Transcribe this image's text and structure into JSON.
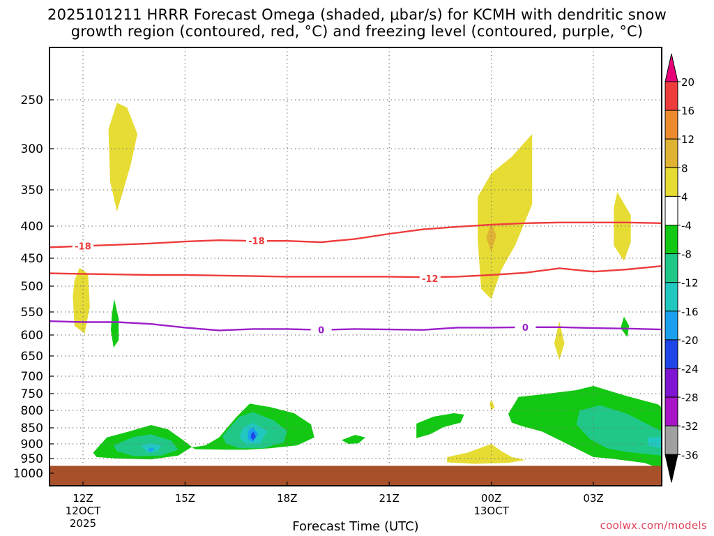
{
  "title_line1": "2025101211 HRRR Forecast Omega (shaded, μbar/s) for KCMH with dendritic snow",
  "title_line2": "growth region (contoured, red, °C) and freezing level (contoured, purple, °C)",
  "credit": "coolwx.com/models",
  "chart_data": {
    "type": "time-height cross section",
    "xlabel": "Forecast Time (UTC)",
    "x_ticks": [
      {
        "hour": 12,
        "label": "12Z",
        "sub": [
          "12OCT",
          "2025"
        ]
      },
      {
        "hour": 15,
        "label": "15Z",
        "sub": []
      },
      {
        "hour": 18,
        "label": "18Z",
        "sub": []
      },
      {
        "hour": 21,
        "label": "21Z",
        "sub": []
      },
      {
        "hour": 24,
        "label": "00Z",
        "sub": [
          "13OCT"
        ]
      },
      {
        "hour": 27,
        "label": "03Z",
        "sub": []
      }
    ],
    "xlim": [
      11,
      29
    ],
    "ylim": [
      1035,
      200
    ],
    "y_ticks": [
      250,
      300,
      350,
      400,
      450,
      500,
      550,
      600,
      650,
      700,
      750,
      800,
      850,
      900,
      950,
      1000
    ],
    "ground_level_hPa": 975,
    "colorbar": {
      "labels": [
        "20",
        "16",
        "12",
        "8",
        "4",
        "-4",
        "-8",
        "-12",
        "-16",
        "-20",
        "-24",
        "-28",
        "-32",
        "-36"
      ],
      "colors": [
        "#e8007a",
        "#ee3c3c",
        "#ed8a2e",
        "#e0b432",
        "#e6dc34",
        "#ffffff",
        "#12c812",
        "#20c888",
        "#20c8c0",
        "#1aa0ee",
        "#1e46e8",
        "#7f14d2",
        "#a814c8",
        "#a0a0a0",
        "#000000"
      ]
    },
    "contours": [
      {
        "name": "dendritic -18C",
        "color": "#ee3c3c",
        "label": "-18",
        "points": [
          [
            11,
            433
          ],
          [
            12,
            431
          ],
          [
            13,
            429
          ],
          [
            14,
            427
          ],
          [
            15,
            424
          ],
          [
            16,
            422
          ],
          [
            17,
            423
          ],
          [
            18,
            423
          ],
          [
            19,
            425
          ],
          [
            20,
            420
          ],
          [
            21,
            412
          ],
          [
            22,
            405
          ],
          [
            23,
            401
          ],
          [
            24,
            398
          ],
          [
            25,
            396
          ],
          [
            26,
            395
          ],
          [
            27,
            395
          ],
          [
            28,
            395
          ],
          [
            29,
            396
          ]
        ],
        "label_at": [
          [
            12,
            431
          ],
          [
            17.1,
            423
          ]
        ]
      },
      {
        "name": "dendritic -12C",
        "color": "#ee3c3c",
        "label": "-12",
        "points": [
          [
            11,
            477
          ],
          [
            12,
            478
          ],
          [
            13,
            479
          ],
          [
            14,
            480
          ],
          [
            15,
            480
          ],
          [
            16,
            481
          ],
          [
            17,
            482
          ],
          [
            18,
            483
          ],
          [
            19,
            483
          ],
          [
            20,
            483
          ],
          [
            21,
            483
          ],
          [
            22,
            484
          ],
          [
            23,
            483
          ],
          [
            24,
            480
          ],
          [
            25,
            476
          ],
          [
            26,
            468
          ],
          [
            27,
            474
          ],
          [
            28,
            470
          ],
          [
            29,
            464
          ]
        ],
        "label_at": [
          [
            22.2,
            486
          ]
        ]
      },
      {
        "name": "freezing level 0C",
        "color": "#9b1fc8",
        "label": "0",
        "points": [
          [
            11,
            570
          ],
          [
            12,
            572
          ],
          [
            13,
            572
          ],
          [
            14,
            576
          ],
          [
            15,
            584
          ],
          [
            16,
            590
          ],
          [
            17,
            587
          ],
          [
            18,
            587
          ],
          [
            19,
            589
          ],
          [
            20,
            587
          ],
          [
            21,
            588
          ],
          [
            22,
            589
          ],
          [
            23,
            584
          ],
          [
            24,
            584
          ],
          [
            25,
            583
          ],
          [
            26,
            583
          ],
          [
            27,
            585
          ],
          [
            28,
            586
          ],
          [
            29,
            588
          ]
        ],
        "label_at": [
          [
            19,
            589
          ],
          [
            25,
            583
          ]
        ]
      }
    ],
    "omega_regions": [
      {
        "value": 4,
        "color": "#e6dc34",
        "points": [
          [
            13,
            253
          ],
          [
            13.3,
            258
          ],
          [
            13.6,
            285
          ],
          [
            13.4,
            320
          ],
          [
            13.0,
            380
          ],
          [
            12.8,
            340
          ],
          [
            12.75,
            280
          ]
        ]
      },
      {
        "value": 4,
        "color": "#e6dc34",
        "points": [
          [
            11.9,
            467
          ],
          [
            12.15,
            478
          ],
          [
            12.2,
            540
          ],
          [
            12.05,
            597
          ],
          [
            11.75,
            580
          ],
          [
            11.7,
            520
          ],
          [
            11.75,
            490
          ]
        ]
      },
      {
        "value": 4,
        "color": "#e6dc34",
        "points": [
          [
            25.2,
            285
          ],
          [
            25.2,
            370
          ],
          [
            24.7,
            430
          ],
          [
            24.3,
            470
          ],
          [
            24.0,
            525
          ],
          [
            23.7,
            505
          ],
          [
            23.6,
            420
          ],
          [
            23.6,
            360
          ],
          [
            24.0,
            330
          ],
          [
            24.6,
            310
          ]
        ]
      },
      {
        "value": 8,
        "color": "#e0b432",
        "points": [
          [
            24.0,
            395
          ],
          [
            24.15,
            415
          ],
          [
            24.0,
            440
          ],
          [
            23.85,
            418
          ]
        ]
      },
      {
        "value": 4,
        "color": "#e6dc34",
        "points": [
          [
            27.7,
            353
          ],
          [
            28.1,
            385
          ],
          [
            28.1,
            425
          ],
          [
            27.9,
            455
          ],
          [
            27.6,
            430
          ],
          [
            27.6,
            375
          ]
        ]
      },
      {
        "value": 4,
        "color": "#e6dc34",
        "points": [
          [
            26.0,
            570
          ],
          [
            26.15,
            620
          ],
          [
            26.0,
            660
          ],
          [
            25.85,
            620
          ]
        ]
      },
      {
        "value": 4,
        "color": "#e6dc34",
        "points": [
          [
            24.0,
            768
          ],
          [
            24.1,
            790
          ],
          [
            24.0,
            800
          ],
          [
            23.95,
            780
          ]
        ]
      },
      {
        "value": 4,
        "color": "#e6dc34",
        "points": [
          [
            22.7,
            945
          ],
          [
            23.3,
            930
          ],
          [
            24.0,
            900
          ],
          [
            24.3,
            925
          ],
          [
            24.6,
            945
          ],
          [
            25.0,
            955
          ],
          [
            24.5,
            965
          ],
          [
            23.5,
            968
          ],
          [
            22.7,
            963
          ]
        ]
      },
      {
        "value": -4,
        "color": "#12c812",
        "points": [
          [
            12.92,
            525
          ],
          [
            13.05,
            565
          ],
          [
            13.05,
            612
          ],
          [
            12.9,
            630
          ],
          [
            12.82,
            590
          ],
          [
            12.85,
            555
          ]
        ]
      },
      {
        "value": -4,
        "color": "#12c812",
        "points": [
          [
            27.9,
            560
          ],
          [
            28.05,
            580
          ],
          [
            28.0,
            605
          ],
          [
            27.8,
            585
          ]
        ]
      },
      {
        "value": -4,
        "color": "#12c812",
        "points": [
          [
            12.3,
            930
          ],
          [
            12.7,
            880
          ],
          [
            13.4,
            860
          ],
          [
            14.0,
            842
          ],
          [
            14.5,
            855
          ],
          [
            14.9,
            885
          ],
          [
            15.2,
            910
          ],
          [
            14.8,
            940
          ],
          [
            14.0,
            953
          ],
          [
            13.0,
            950
          ],
          [
            12.4,
            945
          ]
        ]
      },
      {
        "value": -8,
        "color": "#20c888",
        "points": [
          [
            12.9,
            905
          ],
          [
            13.5,
            878
          ],
          [
            14.0,
            870
          ],
          [
            14.6,
            890
          ],
          [
            14.8,
            920
          ],
          [
            14.3,
            940
          ],
          [
            13.5,
            942
          ],
          [
            13.0,
            925
          ]
        ]
      },
      {
        "value": -12,
        "color": "#20c8c0",
        "points": [
          [
            13.7,
            905
          ],
          [
            14.0,
            897
          ],
          [
            14.3,
            905
          ],
          [
            14.2,
            925
          ],
          [
            13.9,
            930
          ]
        ]
      },
      {
        "value": -16,
        "color": "#1aa0ee",
        "points": [
          [
            13.95,
            915
          ],
          [
            14.05,
            912
          ],
          [
            14.1,
            920
          ],
          [
            14.0,
            928
          ],
          [
            13.9,
            922
          ]
        ]
      },
      {
        "value": -4,
        "color": "#12c812",
        "points": [
          [
            16.0,
            880
          ],
          [
            16.5,
            820
          ],
          [
            16.9,
            780
          ],
          [
            17.5,
            790
          ],
          [
            18.2,
            808
          ],
          [
            18.7,
            840
          ],
          [
            18.8,
            880
          ],
          [
            18.3,
            905
          ],
          [
            17.5,
            915
          ],
          [
            16.8,
            920
          ],
          [
            16.2,
            920
          ],
          [
            15.3,
            918
          ],
          [
            15.2,
            912
          ],
          [
            15.6,
            905
          ]
        ]
      },
      {
        "value": -8,
        "color": "#20c888",
        "points": [
          [
            16.1,
            875
          ],
          [
            16.6,
            818
          ],
          [
            17.0,
            805
          ],
          [
            17.6,
            828
          ],
          [
            18.0,
            860
          ],
          [
            17.9,
            895
          ],
          [
            17.3,
            915
          ],
          [
            16.6,
            915
          ],
          [
            16.2,
            900
          ]
        ]
      },
      {
        "value": -12,
        "color": "#20c8c0",
        "points": [
          [
            16.7,
            850
          ],
          [
            17.0,
            835
          ],
          [
            17.4,
            860
          ],
          [
            17.2,
            900
          ],
          [
            16.8,
            902
          ],
          [
            16.6,
            880
          ]
        ]
      },
      {
        "value": -16,
        "color": "#1aa0ee",
        "points": [
          [
            16.85,
            860
          ],
          [
            17.0,
            848
          ],
          [
            17.15,
            870
          ],
          [
            17.0,
            895
          ],
          [
            16.85,
            885
          ]
        ]
      },
      {
        "value": -20,
        "color": "#1e46e8",
        "points": [
          [
            16.95,
            868
          ],
          [
            17.02,
            862
          ],
          [
            17.08,
            878
          ],
          [
            17.0,
            888
          ],
          [
            16.93,
            880
          ]
        ]
      },
      {
        "value": -4,
        "color": "#12c812",
        "points": [
          [
            19.6,
            888
          ],
          [
            20.0,
            872
          ],
          [
            20.3,
            880
          ],
          [
            20.1,
            898
          ],
          [
            19.8,
            900
          ]
        ]
      },
      {
        "value": -4,
        "color": "#12c812",
        "points": [
          [
            21.8,
            838
          ],
          [
            22.3,
            818
          ],
          [
            22.9,
            808
          ],
          [
            23.2,
            812
          ],
          [
            23.1,
            835
          ],
          [
            22.6,
            848
          ],
          [
            22.2,
            870
          ],
          [
            21.8,
            882
          ]
        ]
      },
      {
        "value": -4,
        "color": "#12c812",
        "points": [
          [
            24.5,
            810
          ],
          [
            24.8,
            760
          ],
          [
            25.5,
            752
          ],
          [
            26.5,
            740
          ],
          [
            27.0,
            728
          ],
          [
            28.0,
            758
          ],
          [
            28.9,
            782
          ],
          [
            29.0,
            790
          ],
          [
            29.0,
            985
          ],
          [
            28.5,
            965
          ],
          [
            27.5,
            950
          ],
          [
            27.0,
            945
          ],
          [
            26.0,
            888
          ],
          [
            25.5,
            862
          ],
          [
            24.9,
            845
          ],
          [
            24.6,
            835
          ]
        ]
      },
      {
        "value": -8,
        "color": "#20c888",
        "points": [
          [
            26.6,
            800
          ],
          [
            27.2,
            785
          ],
          [
            28.0,
            810
          ],
          [
            28.6,
            840
          ],
          [
            29.0,
            860
          ],
          [
            29.0,
            940
          ],
          [
            28.0,
            928
          ],
          [
            27.4,
            915
          ],
          [
            26.9,
            885
          ],
          [
            26.5,
            840
          ]
        ]
      },
      {
        "value": -12,
        "color": "#20c8c0",
        "points": [
          [
            28.6,
            880
          ],
          [
            29.0,
            878
          ],
          [
            29.0,
            915
          ],
          [
            28.6,
            905
          ]
        ]
      }
    ]
  }
}
